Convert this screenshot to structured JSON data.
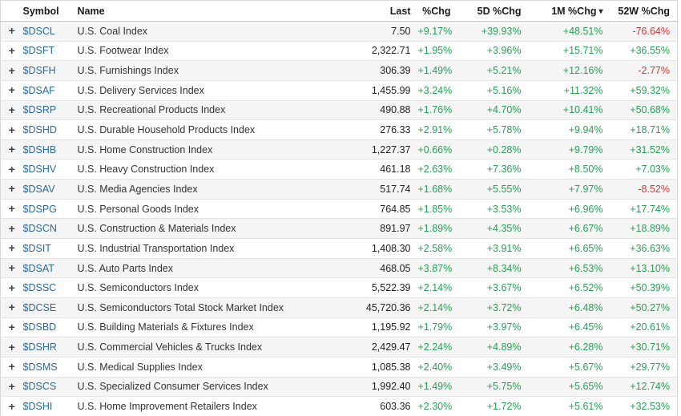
{
  "colors": {
    "positive": "#2a9d58",
    "negative": "#c93b3b",
    "link": "#2a6996"
  },
  "table": {
    "expand_icon": "+",
    "sort_icon": "▾",
    "sorted_column": "1M %Chg",
    "sort_direction": "desc",
    "columns": [
      {
        "key": "expand",
        "label": ""
      },
      {
        "key": "symbol",
        "label": "Symbol"
      },
      {
        "key": "name",
        "label": "Name"
      },
      {
        "key": "last",
        "label": "Last"
      },
      {
        "key": "chg",
        "label": "%Chg"
      },
      {
        "key": "chg_5d",
        "label": "5D %Chg"
      },
      {
        "key": "chg_1m",
        "label": "1M %Chg"
      },
      {
        "key": "chg_52w",
        "label": "52W %Chg"
      }
    ],
    "rows": [
      {
        "symbol": "$DSCL",
        "name": "U.S. Coal Index",
        "last": "7.50",
        "chg": "+9.17%",
        "chg_5d": "+39.93%",
        "chg_1m": "+48.51%",
        "chg_52w": "-76.64%"
      },
      {
        "symbol": "$DSFT",
        "name": "U.S. Footwear Index",
        "last": "2,322.71",
        "chg": "+1.95%",
        "chg_5d": "+3.96%",
        "chg_1m": "+15.71%",
        "chg_52w": "+36.55%"
      },
      {
        "symbol": "$DSFH",
        "name": "U.S. Furnishings Index",
        "last": "306.39",
        "chg": "+1.49%",
        "chg_5d": "+5.21%",
        "chg_1m": "+12.16%",
        "chg_52w": "-2.77%"
      },
      {
        "symbol": "$DSAF",
        "name": "U.S. Delivery Services Index",
        "last": "1,455.99",
        "chg": "+3.24%",
        "chg_5d": "+5.16%",
        "chg_1m": "+11.32%",
        "chg_52w": "+59.32%"
      },
      {
        "symbol": "$DSRP",
        "name": "U.S. Recreational Products Index",
        "last": "490.88",
        "chg": "+1.76%",
        "chg_5d": "+4.70%",
        "chg_1m": "+10.41%",
        "chg_52w": "+50.68%"
      },
      {
        "symbol": "$DSHD",
        "name": "U.S. Durable Household Products Index",
        "last": "276.33",
        "chg": "+2.91%",
        "chg_5d": "+5.78%",
        "chg_1m": "+9.94%",
        "chg_52w": "+18.71%"
      },
      {
        "symbol": "$DSHB",
        "name": "U.S. Home Construction Index",
        "last": "1,227.37",
        "chg": "+0.66%",
        "chg_5d": "+0.28%",
        "chg_1m": "+9.79%",
        "chg_52w": "+31.52%"
      },
      {
        "symbol": "$DSHV",
        "name": "U.S. Heavy Construction Index",
        "last": "461.18",
        "chg": "+2.63%",
        "chg_5d": "+7.36%",
        "chg_1m": "+8.50%",
        "chg_52w": "+7.03%"
      },
      {
        "symbol": "$DSAV",
        "name": "U.S. Media Agencies Index",
        "last": "517.74",
        "chg": "+1.68%",
        "chg_5d": "+5.55%",
        "chg_1m": "+7.97%",
        "chg_52w": "-8.52%"
      },
      {
        "symbol": "$DSPG",
        "name": "U.S. Personal Goods Index",
        "last": "764.85",
        "chg": "+1.85%",
        "chg_5d": "+3.53%",
        "chg_1m": "+6.96%",
        "chg_52w": "+17.74%"
      },
      {
        "symbol": "$DSCN",
        "name": "U.S. Construction & Materials Index",
        "last": "891.97",
        "chg": "+1.89%",
        "chg_5d": "+4.35%",
        "chg_1m": "+6.67%",
        "chg_52w": "+18.89%"
      },
      {
        "symbol": "$DSIT",
        "name": "U.S. Industrial Transportation Index",
        "last": "1,408.30",
        "chg": "+2.58%",
        "chg_5d": "+3.91%",
        "chg_1m": "+6.65%",
        "chg_52w": "+36.63%"
      },
      {
        "symbol": "$DSAT",
        "name": "U.S. Auto Parts Index",
        "last": "468.05",
        "chg": "+3.87%",
        "chg_5d": "+8.34%",
        "chg_1m": "+6.53%",
        "chg_52w": "+13.10%"
      },
      {
        "symbol": "$DSSC",
        "name": "U.S. Semiconductors Index",
        "last": "5,522.39",
        "chg": "+2.14%",
        "chg_5d": "+3.67%",
        "chg_1m": "+6.52%",
        "chg_52w": "+50.39%"
      },
      {
        "symbol": "$DCSE",
        "name": "U.S. Semiconductors Total Stock Market Index",
        "last": "45,720.36",
        "chg": "+2.14%",
        "chg_5d": "+3.72%",
        "chg_1m": "+6.48%",
        "chg_52w": "+50.27%"
      },
      {
        "symbol": "$DSBD",
        "name": "U.S. Building Materials & Fixtures Index",
        "last": "1,195.92",
        "chg": "+1.79%",
        "chg_5d": "+3.97%",
        "chg_1m": "+6.45%",
        "chg_52w": "+20.61%"
      },
      {
        "symbol": "$DSHR",
        "name": "U.S. Commercial Vehicles & Trucks Index",
        "last": "2,429.47",
        "chg": "+2.24%",
        "chg_5d": "+4.89%",
        "chg_1m": "+6.28%",
        "chg_52w": "+30.71%"
      },
      {
        "symbol": "$DSMS",
        "name": "U.S. Medical Supplies Index",
        "last": "1,085.38",
        "chg": "+2.40%",
        "chg_5d": "+3.49%",
        "chg_1m": "+5.67%",
        "chg_52w": "+29.77%"
      },
      {
        "symbol": "$DSCS",
        "name": "U.S. Specialized Consumer Services Index",
        "last": "1,992.40",
        "chg": "+1.49%",
        "chg_5d": "+5.75%",
        "chg_1m": "+5.65%",
        "chg_52w": "+12.74%"
      },
      {
        "symbol": "$DSHI",
        "name": "U.S. Home Improvement Retailers Index",
        "last": "603.36",
        "chg": "+2.30%",
        "chg_5d": "+1.72%",
        "chg_1m": "+5.61%",
        "chg_52w": "+32.53%"
      }
    ]
  }
}
